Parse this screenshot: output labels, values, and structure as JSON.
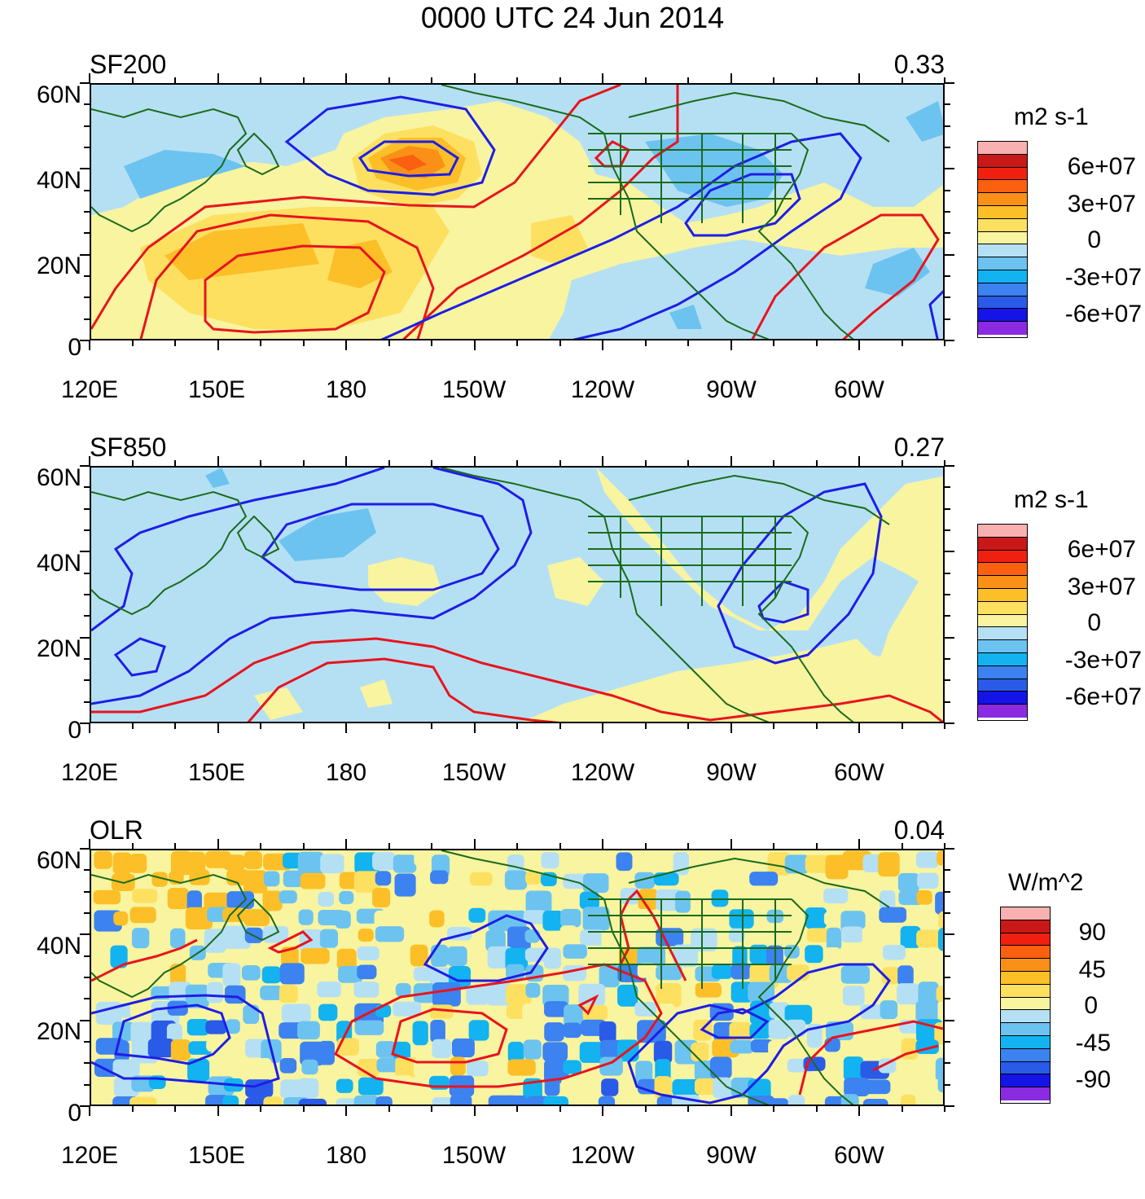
{
  "title": "0000 UTC 24 Jun 2014",
  "lat_labels": [
    "60N",
    "40N",
    "20N",
    "0"
  ],
  "lon_labels": [
    "120E",
    "150E",
    "180",
    "150W",
    "120W",
    "90W",
    "60W"
  ],
  "colors": {
    "contour_positive": "#e8141e",
    "contour_negative": "#1e1ee6",
    "coastline": "#1b6b1b"
  },
  "palette": [
    "#8a2be2",
    "#1414e6",
    "#2a5ae8",
    "#3c82f0",
    "#12b3f0",
    "#6dc3f0",
    "#b5e0f4",
    "#f8f4a0",
    "#fde060",
    "#fcbf28",
    "#fa9018",
    "#fa6010",
    "#f02010",
    "#c81818",
    "#f8b0b0"
  ],
  "panels": [
    {
      "id": "sf200",
      "label": "SF200",
      "value": "0.33",
      "units": "m2 s-1",
      "colorbar_labels": [
        "6e+07",
        "3e+07",
        "0",
        "-3e+07",
        "-6e+07"
      ]
    },
    {
      "id": "sf850",
      "label": "SF850",
      "value": "0.27",
      "units": "m2 s-1",
      "colorbar_labels": [
        "6e+07",
        "3e+07",
        "0",
        "-3e+07",
        "-6e+07"
      ]
    },
    {
      "id": "olr",
      "label": "OLR",
      "value": "0.04",
      "units": "W/m^2",
      "colorbar_labels": [
        "90",
        "45",
        "0",
        "-45",
        "-90"
      ]
    }
  ]
}
